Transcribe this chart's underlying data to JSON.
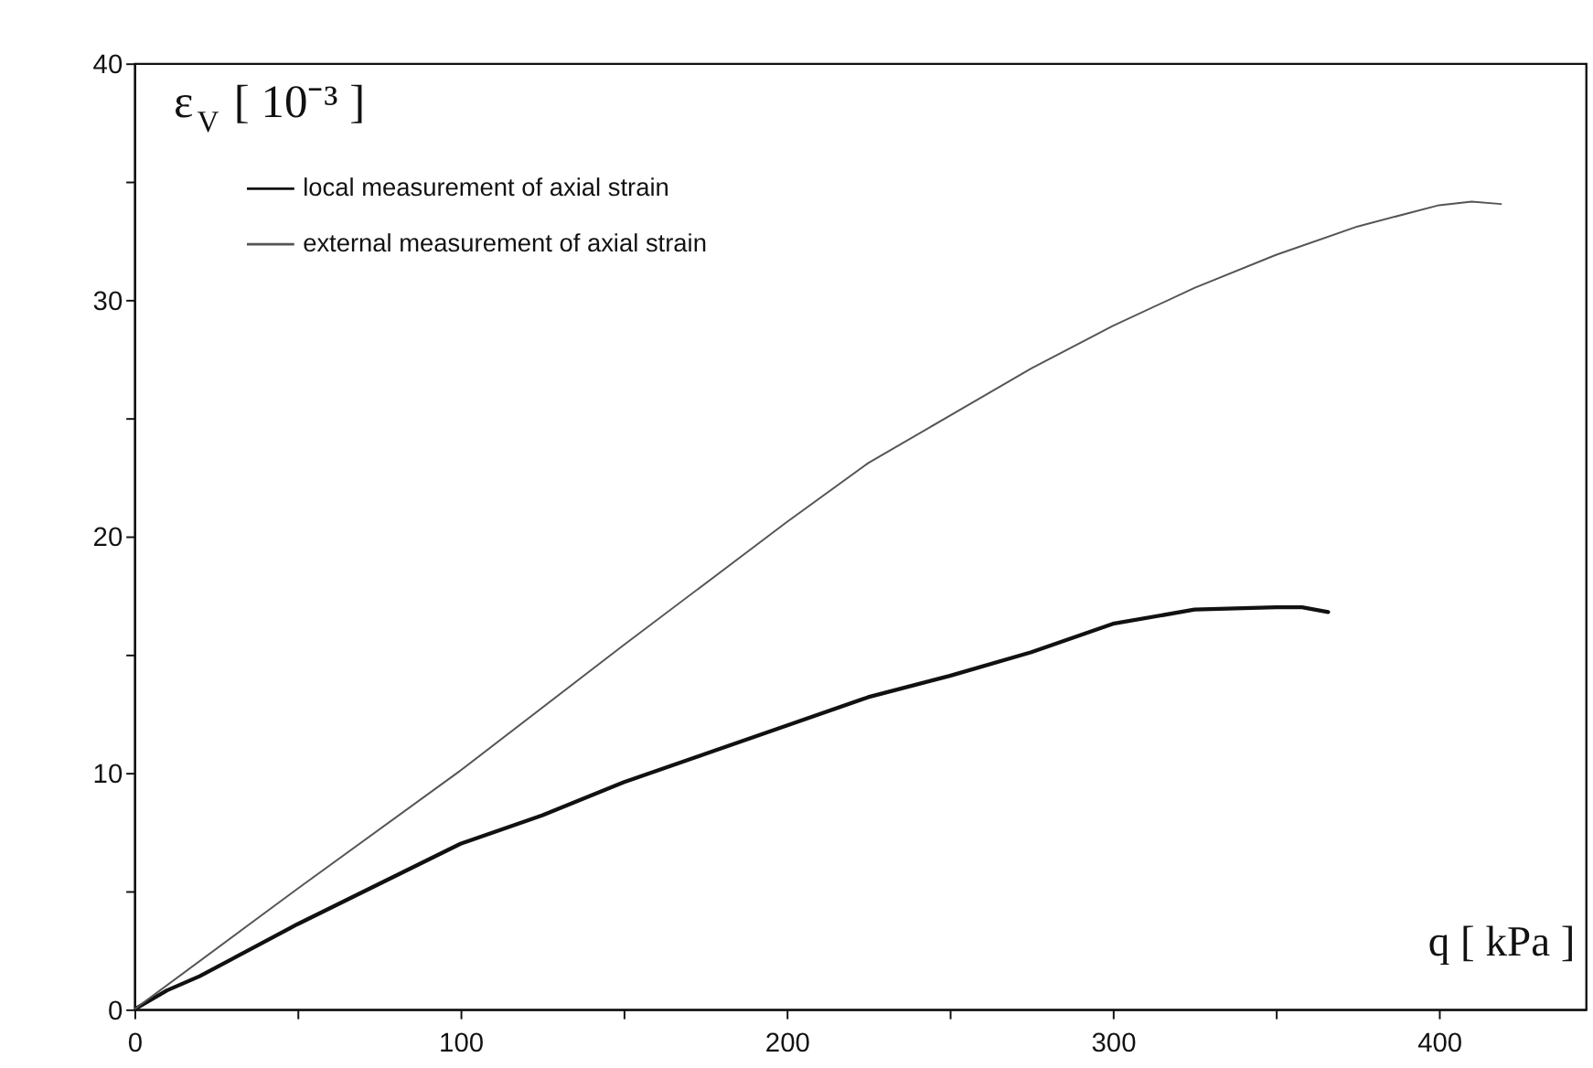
{
  "chart_data": {
    "type": "line",
    "xlabel": "q [ kPa ]",
    "ylabel": "ε$_{V}$ [ 10⁻³ ]",
    "xlim": [
      0,
      445
    ],
    "ylim": [
      0,
      40
    ],
    "xticks": [
      0,
      {
        "value": 50,
        "label": null
      },
      100,
      {
        "value": 150,
        "label": null
      },
      200,
      {
        "value": 250,
        "label": null
      },
      300,
      {
        "value": 350,
        "label": null
      },
      400
    ],
    "yticks": [
      0,
      {
        "value": 5,
        "label": null
      },
      10,
      {
        "value": 15,
        "label": null
      },
      20,
      {
        "value": 25,
        "label": null
      },
      30,
      {
        "value": 35,
        "label": null
      },
      40
    ],
    "grid": false,
    "legend": "top left",
    "marker": "none",
    "line_style": "solid",
    "series": [
      {
        "name": "local measurement of axial strain",
        "color": "#111111",
        "x": [
          0,
          10,
          20,
          50,
          75,
          100,
          125,
          150,
          175,
          200,
          225,
          250,
          275,
          300,
          325,
          350,
          358,
          366
        ],
        "values": [
          0,
          0.8,
          1.4,
          3.6,
          5.3,
          7.0,
          8.2,
          9.6,
          10.8,
          12.0,
          13.2,
          14.1,
          15.1,
          16.3,
          16.9,
          17.0,
          17.0,
          16.8
        ]
      },
      {
        "name": "external measurement of axial strain",
        "color": "#555555",
        "x": [
          0,
          50,
          100,
          150,
          200,
          225,
          250,
          275,
          300,
          325,
          350,
          375,
          400,
          410,
          419
        ],
        "values": [
          0,
          5.1,
          10.1,
          15.4,
          20.6,
          23.1,
          25.1,
          27.1,
          28.9,
          30.5,
          31.9,
          33.1,
          34.0,
          34.15,
          34.05
        ]
      }
    ]
  }
}
